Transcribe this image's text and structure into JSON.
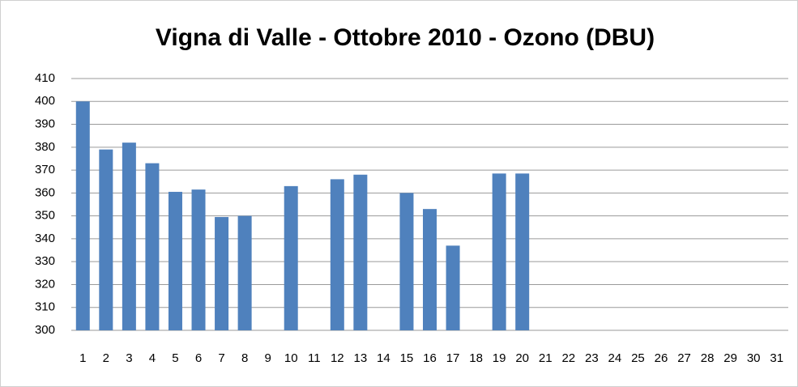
{
  "chart_data": {
    "type": "bar",
    "title": "Vigna di Valle - Ottobre 2010 - Ozono (DBU)",
    "categories": [
      "1",
      "2",
      "3",
      "4",
      "5",
      "6",
      "7",
      "8",
      "9",
      "10",
      "11",
      "12",
      "13",
      "14",
      "15",
      "16",
      "17",
      "18",
      "19",
      "20",
      "21",
      "22",
      "23",
      "24",
      "25",
      "26",
      "27",
      "28",
      "29",
      "30",
      "31"
    ],
    "values": [
      400,
      379,
      382,
      373,
      360.5,
      361.5,
      349.5,
      350,
      null,
      363,
      null,
      366,
      368,
      null,
      360,
      353,
      337,
      null,
      368.5,
      368.5,
      null,
      null,
      null,
      null,
      null,
      null,
      null,
      null,
      null,
      null,
      null
    ],
    "color": "#4f81bd",
    "ylim": [
      300,
      410
    ],
    "yticks": [
      300,
      310,
      320,
      330,
      340,
      350,
      360,
      370,
      380,
      390,
      400,
      410
    ],
    "grid": true
  }
}
